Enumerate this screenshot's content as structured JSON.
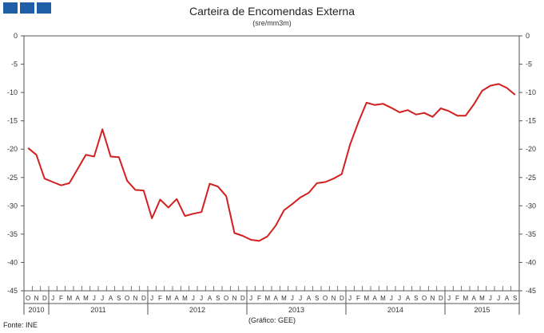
{
  "chart_data": {
    "type": "line",
    "title": "Carteira de Encomendas Externa",
    "subtitle": "(sre/mm3m)",
    "ylim": [
      -45,
      0
    ],
    "yticks": [
      0,
      -5,
      -10,
      -15,
      -20,
      -25,
      -30,
      -35,
      -40,
      -45
    ],
    "colors": {
      "line": "#d21f1f"
    },
    "months": [
      "O",
      "N",
      "D",
      "J",
      "F",
      "M",
      "A",
      "M",
      "J",
      "J",
      "A",
      "S",
      "O",
      "N",
      "D",
      "J",
      "F",
      "M",
      "A",
      "M",
      "J",
      "J",
      "A",
      "S",
      "O",
      "N",
      "D",
      "J",
      "F",
      "M",
      "A",
      "M",
      "J",
      "J",
      "A",
      "S",
      "O",
      "N",
      "D",
      "J",
      "F",
      "M",
      "A",
      "M",
      "J",
      "J",
      "A",
      "S",
      "O",
      "N",
      "D",
      "J",
      "F",
      "M",
      "A",
      "M",
      "J",
      "J",
      "A",
      "S"
    ],
    "years": [
      {
        "label": "2010",
        "start": 0,
        "count": 3
      },
      {
        "label": "2011",
        "start": 3,
        "count": 12
      },
      {
        "label": "2012",
        "start": 15,
        "count": 12
      },
      {
        "label": "2013",
        "start": 27,
        "count": 12
      },
      {
        "label": "2014",
        "start": 39,
        "count": 12
      },
      {
        "label": "2015",
        "start": 51,
        "count": 9
      }
    ],
    "series": [
      {
        "values": [
          -19.8,
          -21.0,
          -25.2,
          -25.8,
          -26.4,
          -26.0,
          -23.5,
          -21.0,
          -21.3,
          -16.5,
          -21.3,
          -21.4,
          -25.6,
          -27.2,
          -27.3,
          -32.2,
          -28.9,
          -30.3,
          -28.8,
          -31.8,
          -31.4,
          -31.1,
          -26.1,
          -26.6,
          -28.3,
          -34.8,
          -35.3,
          -36.0,
          -36.2,
          -35.4,
          -33.5,
          -30.8,
          -29.7,
          -28.5,
          -27.7,
          -26.0,
          -25.8,
          -25.2,
          -24.4,
          -19.2,
          -15.3,
          -11.8,
          -12.2,
          -12.0,
          -12.7,
          -13.5,
          -13.1,
          -13.9,
          -13.6,
          -14.3,
          -12.8,
          -13.3,
          -14.1,
          -14.1,
          -12.1,
          -9.7,
          -8.8,
          -8.5,
          -9.2,
          -10.4
        ]
      }
    ]
  },
  "footer": {
    "source": "Fonte: INE",
    "credit": "(Gráfico: GEE)"
  }
}
